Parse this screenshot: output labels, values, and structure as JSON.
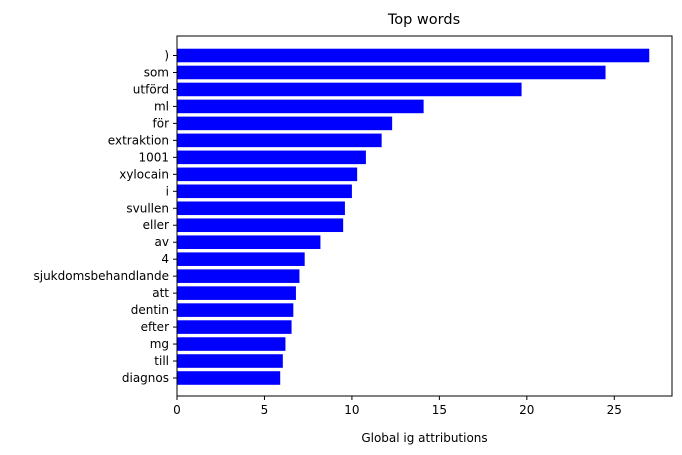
{
  "chart_data": {
    "type": "bar",
    "orientation": "horizontal",
    "title": "Top words",
    "xlabel": "Global ig attributions",
    "ylabel": "",
    "xlim": [
      0,
      28.3
    ],
    "xticks": [
      0,
      5,
      10,
      15,
      20,
      25
    ],
    "grid": false,
    "bar_color": "#0000ff",
    "categories": [
      ")",
      "som",
      "utförd",
      "ml",
      "för",
      "extraktion",
      "1001",
      "xylocain",
      "i",
      "svullen",
      "eller",
      "av",
      "4",
      "sjukdomsbehandlande",
      "att",
      "dentin",
      "efter",
      "mg",
      "till",
      "diagnos"
    ],
    "values": [
      27.0,
      24.5,
      19.7,
      14.1,
      12.3,
      11.7,
      10.8,
      10.3,
      10.0,
      9.6,
      9.5,
      8.2,
      7.3,
      7.0,
      6.8,
      6.65,
      6.55,
      6.2,
      6.05,
      5.9
    ]
  }
}
